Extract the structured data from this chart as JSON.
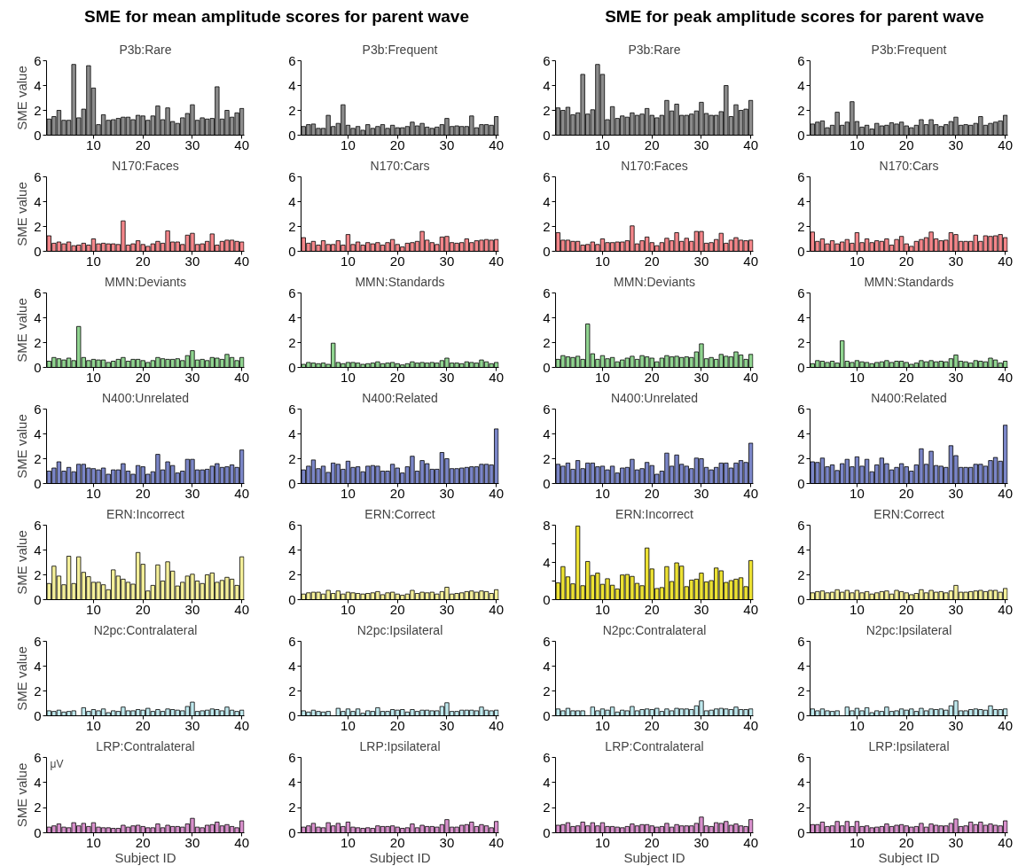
{
  "chart_data": [
    {
      "type": "bar",
      "title": "P3b:Rare",
      "ylabel": "SME value",
      "annotations": [
        "SME for mean amplitude scores for parent wave"
      ],
      "color": "#8c8c8c",
      "xlim": [
        0.5,
        40.5
      ],
      "xticks": [
        10,
        20,
        30,
        40
      ],
      "ylim": [
        0,
        6
      ],
      "yticks": [
        0,
        2,
        4,
        6
      ],
      "x": [
        1,
        2,
        3,
        4,
        5,
        6,
        7,
        8,
        9,
        10,
        11,
        12,
        13,
        14,
        15,
        16,
        17,
        18,
        19,
        20,
        21,
        22,
        23,
        24,
        25,
        26,
        27,
        28,
        29,
        30,
        31,
        32,
        33,
        34,
        35,
        36,
        37,
        38,
        39,
        40
      ],
      "values": [
        1.3,
        1.5,
        2.0,
        1.2,
        1.2,
        5.7,
        1.4,
        2.1,
        5.6,
        3.8,
        0.85,
        1.65,
        1.2,
        1.25,
        1.35,
        1.45,
        1.45,
        1.25,
        1.6,
        1.55,
        1.2,
        1.55,
        2.35,
        1.25,
        2.2,
        1.1,
        0.95,
        1.4,
        1.75,
        2.45,
        1.2,
        1.4,
        1.3,
        1.35,
        3.9,
        1.3,
        2.0,
        1.45,
        1.8,
        2.15
      ]
    },
    {
      "type": "bar",
      "title": "P3b:Frequent",
      "color": "#8c8c8c",
      "xlim": [
        0.5,
        40.5
      ],
      "xticks": [
        10,
        20,
        30,
        40
      ],
      "ylim": [
        0,
        6
      ],
      "yticks": [
        0,
        2,
        4,
        6
      ],
      "x": [
        1,
        2,
        3,
        4,
        5,
        6,
        7,
        8,
        9,
        10,
        11,
        12,
        13,
        14,
        15,
        16,
        17,
        18,
        19,
        20,
        21,
        22,
        23,
        24,
        25,
        26,
        27,
        28,
        29,
        30,
        31,
        32,
        33,
        34,
        35,
        36,
        37,
        38,
        39,
        40
      ],
      "values": [
        0.7,
        0.85,
        0.9,
        0.55,
        0.55,
        1.6,
        0.7,
        0.95,
        2.45,
        0.8,
        0.55,
        0.7,
        0.4,
        0.85,
        0.55,
        0.7,
        0.85,
        0.55,
        0.8,
        0.6,
        0.6,
        0.7,
        1.05,
        0.75,
        0.95,
        0.65,
        0.55,
        0.65,
        0.85,
        1.35,
        0.7,
        0.75,
        0.7,
        0.7,
        1.55,
        0.6,
        0.85,
        0.85,
        0.8,
        1.5
      ]
    },
    {
      "type": "bar",
      "title": "P3b:Rare",
      "annotations": [
        "SME for peak amplitude scores for parent wave"
      ],
      "color": "#8c8c8c",
      "xlim": [
        0.5,
        40.5
      ],
      "xticks": [
        10,
        20,
        30,
        40
      ],
      "ylim": [
        0,
        6
      ],
      "yticks": [
        0,
        2,
        4,
        6
      ],
      "x": [
        1,
        2,
        3,
        4,
        5,
        6,
        7,
        8,
        9,
        10,
        11,
        12,
        13,
        14,
        15,
        16,
        17,
        18,
        19,
        20,
        21,
        22,
        23,
        24,
        25,
        26,
        27,
        28,
        29,
        30,
        31,
        32,
        33,
        34,
        35,
        36,
        37,
        38,
        39,
        40
      ],
      "values": [
        2.2,
        2.0,
        2.25,
        1.65,
        1.8,
        4.9,
        1.7,
        2.05,
        5.7,
        4.9,
        1.25,
        2.3,
        1.35,
        1.55,
        1.45,
        1.8,
        1.6,
        1.7,
        2.15,
        1.6,
        1.4,
        1.6,
        2.8,
        1.95,
        2.5,
        1.6,
        1.6,
        1.7,
        1.95,
        2.65,
        1.75,
        1.6,
        1.6,
        1.9,
        4.0,
        1.5,
        2.45,
        2.0,
        2.1,
        2.8
      ]
    },
    {
      "type": "bar",
      "title": "P3b:Frequent",
      "color": "#8c8c8c",
      "xlim": [
        0.5,
        40.5
      ],
      "xticks": [
        10,
        20,
        30,
        40
      ],
      "ylim": [
        0,
        6
      ],
      "yticks": [
        0,
        2,
        4,
        6
      ],
      "x": [
        1,
        2,
        3,
        4,
        5,
        6,
        7,
        8,
        9,
        10,
        11,
        12,
        13,
        14,
        15,
        16,
        17,
        18,
        19,
        20,
        21,
        22,
        23,
        24,
        25,
        26,
        27,
        28,
        29,
        30,
        31,
        32,
        33,
        34,
        35,
        36,
        37,
        38,
        39,
        40
      ],
      "values": [
        0.9,
        1.05,
        1.15,
        0.6,
        0.8,
        1.85,
        0.8,
        1.05,
        2.7,
        1.1,
        0.65,
        0.8,
        0.5,
        0.95,
        0.75,
        0.8,
        1.0,
        0.9,
        1.05,
        0.75,
        0.6,
        0.8,
        1.25,
        0.85,
        1.25,
        0.85,
        0.7,
        0.85,
        1.1,
        1.45,
        0.8,
        0.85,
        0.8,
        0.95,
        1.5,
        0.8,
        0.95,
        1.05,
        1.15,
        1.6
      ]
    },
    {
      "type": "bar",
      "title": "N170:Faces",
      "ylabel": "SME value",
      "color": "#f4868a",
      "xlim": [
        0.5,
        40.5
      ],
      "xticks": [
        10,
        20,
        30,
        40
      ],
      "ylim": [
        0,
        6
      ],
      "yticks": [
        0,
        2,
        4,
        6
      ],
      "x": [
        1,
        2,
        3,
        4,
        5,
        6,
        7,
        8,
        9,
        10,
        11,
        12,
        13,
        14,
        15,
        16,
        17,
        18,
        19,
        20,
        21,
        22,
        23,
        24,
        25,
        26,
        27,
        28,
        29,
        30,
        31,
        32,
        33,
        34,
        35,
        36,
        37,
        38,
        39,
        40
      ],
      "values": [
        1.25,
        0.65,
        0.75,
        0.6,
        0.75,
        0.45,
        0.5,
        0.65,
        0.5,
        1.0,
        0.6,
        0.65,
        0.6,
        0.6,
        0.55,
        2.45,
        0.5,
        0.6,
        0.85,
        0.55,
        0.4,
        0.6,
        0.8,
        0.65,
        1.65,
        0.75,
        0.75,
        0.55,
        1.3,
        1.45,
        0.55,
        0.6,
        0.8,
        1.4,
        0.5,
        0.8,
        0.9,
        0.9,
        0.8,
        0.75
      ]
    },
    {
      "type": "bar",
      "title": "N170:Cars",
      "color": "#f4868a",
      "xlim": [
        0.5,
        40.5
      ],
      "xticks": [
        10,
        20,
        30,
        40
      ],
      "ylim": [
        0,
        6
      ],
      "yticks": [
        0,
        2,
        4,
        6
      ],
      "x": [
        1,
        2,
        3,
        4,
        5,
        6,
        7,
        8,
        9,
        10,
        11,
        12,
        13,
        14,
        15,
        16,
        17,
        18,
        19,
        20,
        21,
        22,
        23,
        24,
        25,
        26,
        27,
        28,
        29,
        30,
        31,
        32,
        33,
        34,
        35,
        36,
        37,
        38,
        39,
        40
      ],
      "values": [
        1.1,
        0.65,
        0.8,
        0.5,
        0.85,
        0.55,
        0.55,
        0.85,
        0.5,
        1.35,
        0.55,
        0.75,
        0.5,
        0.7,
        0.6,
        0.7,
        0.5,
        0.7,
        0.95,
        0.55,
        0.35,
        0.65,
        0.7,
        0.8,
        1.6,
        0.9,
        0.7,
        0.55,
        1.15,
        1.2,
        0.7,
        0.65,
        0.7,
        1.0,
        0.7,
        0.85,
        0.9,
        0.95,
        0.9,
        0.95
      ]
    },
    {
      "type": "bar",
      "title": "N170:Faces",
      "color": "#f4868a",
      "xlim": [
        0.5,
        40.5
      ],
      "xticks": [
        10,
        20,
        30,
        40
      ],
      "ylim": [
        0,
        6
      ],
      "yticks": [
        0,
        2,
        4,
        6
      ],
      "x": [
        1,
        2,
        3,
        4,
        5,
        6,
        7,
        8,
        9,
        10,
        11,
        12,
        13,
        14,
        15,
        16,
        17,
        18,
        19,
        20,
        21,
        22,
        23,
        24,
        25,
        26,
        27,
        28,
        29,
        30,
        31,
        32,
        33,
        34,
        35,
        36,
        37,
        38,
        39,
        40
      ],
      "values": [
        1.5,
        0.9,
        0.9,
        0.8,
        0.8,
        0.5,
        0.55,
        0.75,
        0.55,
        1.0,
        0.7,
        0.7,
        0.75,
        0.75,
        0.85,
        2.05,
        0.6,
        0.85,
        1.15,
        0.7,
        0.45,
        0.7,
        1.05,
        0.85,
        1.5,
        0.8,
        1.05,
        0.8,
        1.6,
        1.6,
        0.65,
        0.7,
        0.95,
        1.45,
        0.65,
        0.9,
        1.1,
        0.9,
        0.85,
        0.9
      ]
    },
    {
      "type": "bar",
      "title": "N170:Cars",
      "color": "#f4868a",
      "xlim": [
        0.5,
        40.5
      ],
      "xticks": [
        10,
        20,
        30,
        40
      ],
      "ylim": [
        0,
        6
      ],
      "yticks": [
        0,
        2,
        4,
        6
      ],
      "x": [
        1,
        2,
        3,
        4,
        5,
        6,
        7,
        8,
        9,
        10,
        11,
        12,
        13,
        14,
        15,
        16,
        17,
        18,
        19,
        20,
        21,
        22,
        23,
        24,
        25,
        26,
        27,
        28,
        29,
        30,
        31,
        32,
        33,
        34,
        35,
        36,
        37,
        38,
        39,
        40
      ],
      "values": [
        1.55,
        0.8,
        1.0,
        0.6,
        0.85,
        0.6,
        0.75,
        0.95,
        0.65,
        1.5,
        0.7,
        1.0,
        0.7,
        0.85,
        0.8,
        1.0,
        0.5,
        0.95,
        1.2,
        0.6,
        0.4,
        0.8,
        0.95,
        1.1,
        1.55,
        1.0,
        0.85,
        0.9,
        1.5,
        1.35,
        0.8,
        0.8,
        0.8,
        1.3,
        0.8,
        1.25,
        1.2,
        1.25,
        1.35,
        1.1
      ]
    },
    {
      "type": "bar",
      "title": "MMN:Deviants",
      "ylabel": "SME value",
      "color": "#90d490",
      "xlim": [
        0.5,
        40.5
      ],
      "xticks": [
        10,
        20,
        30,
        40
      ],
      "ylim": [
        0,
        6
      ],
      "yticks": [
        0,
        2,
        4,
        6
      ],
      "x": [
        1,
        2,
        3,
        4,
        5,
        6,
        7,
        8,
        9,
        10,
        11,
        12,
        13,
        14,
        15,
        16,
        17,
        18,
        19,
        20,
        21,
        22,
        23,
        24,
        25,
        26,
        27,
        28,
        29,
        30,
        31,
        32,
        33,
        34,
        35,
        36,
        37,
        38,
        39,
        40
      ],
      "values": [
        0.5,
        0.8,
        0.7,
        0.6,
        0.75,
        0.55,
        3.3,
        0.8,
        0.55,
        0.65,
        0.6,
        0.6,
        0.4,
        0.5,
        0.65,
        0.8,
        0.5,
        0.65,
        0.65,
        0.55,
        0.4,
        0.55,
        0.8,
        0.7,
        0.65,
        0.65,
        0.7,
        0.55,
        0.95,
        1.35,
        0.6,
        0.65,
        0.55,
        0.8,
        0.75,
        0.65,
        1.05,
        0.8,
        0.55,
        0.8
      ]
    },
    {
      "type": "bar",
      "title": "MMN:Standards",
      "color": "#90d490",
      "xlim": [
        0.5,
        40.5
      ],
      "xticks": [
        10,
        20,
        30,
        40
      ],
      "ylim": [
        0,
        6
      ],
      "yticks": [
        0,
        2,
        4,
        6
      ],
      "x": [
        1,
        2,
        3,
        4,
        5,
        6,
        7,
        8,
        9,
        10,
        11,
        12,
        13,
        14,
        15,
        16,
        17,
        18,
        19,
        20,
        21,
        22,
        23,
        24,
        25,
        26,
        27,
        28,
        29,
        30,
        31,
        32,
        33,
        34,
        35,
        36,
        37,
        38,
        39,
        40
      ],
      "values": [
        0.25,
        0.4,
        0.35,
        0.3,
        0.35,
        0.25,
        1.95,
        0.4,
        0.3,
        0.4,
        0.4,
        0.35,
        0.25,
        0.3,
        0.35,
        0.45,
        0.3,
        0.35,
        0.4,
        0.3,
        0.2,
        0.3,
        0.45,
        0.35,
        0.4,
        0.35,
        0.4,
        0.35,
        0.55,
        0.75,
        0.35,
        0.35,
        0.3,
        0.45,
        0.4,
        0.35,
        0.6,
        0.45,
        0.3,
        0.4
      ]
    },
    {
      "type": "bar",
      "title": "MMN:Deviants",
      "color": "#90d490",
      "xlim": [
        0.5,
        40.5
      ],
      "xticks": [
        10,
        20,
        30,
        40
      ],
      "ylim": [
        0,
        6
      ],
      "yticks": [
        0,
        2,
        4,
        6
      ],
      "x": [
        1,
        2,
        3,
        4,
        5,
        6,
        7,
        8,
        9,
        10,
        11,
        12,
        13,
        14,
        15,
        16,
        17,
        18,
        19,
        20,
        21,
        22,
        23,
        24,
        25,
        26,
        27,
        28,
        29,
        30,
        31,
        32,
        33,
        34,
        35,
        36,
        37,
        38,
        39,
        40
      ],
      "values": [
        0.65,
        0.95,
        0.85,
        0.8,
        0.9,
        0.65,
        3.5,
        1.1,
        0.65,
        0.95,
        0.7,
        0.8,
        0.45,
        0.6,
        0.75,
        0.9,
        0.65,
        0.95,
        0.85,
        0.75,
        0.45,
        0.75,
        0.95,
        0.85,
        0.9,
        0.8,
        0.85,
        0.8,
        1.25,
        1.9,
        0.7,
        0.8,
        0.65,
        1.05,
        0.9,
        0.85,
        1.25,
        1.0,
        0.65,
        1.05
      ]
    },
    {
      "type": "bar",
      "title": "MMN:Standards",
      "color": "#90d490",
      "xlim": [
        0.5,
        40.5
      ],
      "xticks": [
        10,
        20,
        30,
        40
      ],
      "ylim": [
        0,
        6
      ],
      "yticks": [
        0,
        2,
        4,
        6
      ],
      "x": [
        1,
        2,
        3,
        4,
        5,
        6,
        7,
        8,
        9,
        10,
        11,
        12,
        13,
        14,
        15,
        16,
        17,
        18,
        19,
        20,
        21,
        22,
        23,
        24,
        25,
        26,
        27,
        28,
        29,
        30,
        31,
        32,
        33,
        34,
        35,
        36,
        37,
        38,
        39,
        40
      ],
      "values": [
        0.3,
        0.55,
        0.5,
        0.4,
        0.5,
        0.35,
        2.15,
        0.5,
        0.4,
        0.55,
        0.45,
        0.4,
        0.3,
        0.4,
        0.45,
        0.55,
        0.4,
        0.5,
        0.5,
        0.4,
        0.25,
        0.35,
        0.55,
        0.45,
        0.55,
        0.45,
        0.5,
        0.45,
        0.7,
        1.0,
        0.5,
        0.45,
        0.35,
        0.55,
        0.5,
        0.45,
        0.75,
        0.6,
        0.35,
        0.5
      ]
    },
    {
      "type": "bar",
      "title": "N400:Unrelated",
      "ylabel": "SME value",
      "color": "#7b86c8",
      "xlim": [
        0.5,
        40.5
      ],
      "xticks": [
        10,
        20,
        30,
        40
      ],
      "ylim": [
        0,
        6
      ],
      "yticks": [
        0,
        2,
        4,
        6
      ],
      "x": [
        1,
        2,
        3,
        4,
        5,
        6,
        7,
        8,
        9,
        10,
        11,
        12,
        13,
        14,
        15,
        16,
        17,
        18,
        19,
        20,
        21,
        22,
        23,
        24,
        25,
        26,
        27,
        28,
        29,
        30,
        31,
        32,
        33,
        34,
        35,
        36,
        37,
        38,
        39,
        40
      ],
      "values": [
        1.0,
        1.25,
        1.75,
        1.0,
        1.3,
        0.95,
        1.55,
        1.55,
        1.25,
        1.2,
        1.1,
        1.25,
        0.75,
        1.1,
        1.1,
        1.6,
        1.0,
        0.75,
        1.45,
        1.35,
        0.75,
        0.95,
        2.35,
        1.1,
        1.75,
        1.45,
        0.85,
        1.0,
        1.95,
        1.95,
        1.1,
        1.1,
        1.15,
        1.4,
        1.6,
        1.3,
        1.35,
        1.5,
        1.3,
        2.7
      ]
    },
    {
      "type": "bar",
      "title": "N400:Related",
      "color": "#7b86c8",
      "xlim": [
        0.5,
        40.5
      ],
      "xticks": [
        10,
        20,
        30,
        40
      ],
      "ylim": [
        0,
        6
      ],
      "yticks": [
        0,
        2,
        4,
        6
      ],
      "x": [
        1,
        2,
        3,
        4,
        5,
        6,
        7,
        8,
        9,
        10,
        11,
        12,
        13,
        14,
        15,
        16,
        17,
        18,
        19,
        20,
        21,
        22,
        23,
        24,
        25,
        26,
        27,
        28,
        29,
        30,
        31,
        32,
        33,
        34,
        35,
        36,
        37,
        38,
        39,
        40
      ],
      "values": [
        1.1,
        1.4,
        1.9,
        1.2,
        1.4,
        0.9,
        1.65,
        1.55,
        1.15,
        1.8,
        1.3,
        1.35,
        0.95,
        1.4,
        1.45,
        1.4,
        1.0,
        1.0,
        1.55,
        1.25,
        0.85,
        1.35,
        2.2,
        1.0,
        1.85,
        1.6,
        1.15,
        1.15,
        2.5,
        2.0,
        1.2,
        1.2,
        1.25,
        1.3,
        1.35,
        1.35,
        1.55,
        1.55,
        1.5,
        4.4
      ]
    },
    {
      "type": "bar",
      "title": "N400:Unrelated",
      "color": "#7b86c8",
      "xlim": [
        0.5,
        40.5
      ],
      "xticks": [
        10,
        20,
        30,
        40
      ],
      "ylim": [
        0,
        6
      ],
      "yticks": [
        0,
        2,
        4,
        6
      ],
      "x": [
        1,
        2,
        3,
        4,
        5,
        6,
        7,
        8,
        9,
        10,
        11,
        12,
        13,
        14,
        15,
        16,
        17,
        18,
        19,
        20,
        21,
        22,
        23,
        24,
        25,
        26,
        27,
        28,
        29,
        30,
        31,
        32,
        33,
        34,
        35,
        36,
        37,
        38,
        39,
        40
      ],
      "values": [
        1.55,
        1.4,
        1.65,
        1.15,
        1.85,
        1.2,
        1.65,
        1.65,
        1.35,
        1.4,
        1.1,
        1.4,
        0.85,
        1.25,
        1.3,
        1.95,
        1.1,
        1.2,
        1.7,
        1.45,
        0.75,
        1.0,
        2.45,
        1.4,
        2.3,
        1.55,
        1.4,
        1.2,
        2.05,
        2.0,
        1.3,
        1.1,
        1.3,
        1.65,
        1.65,
        1.25,
        1.65,
        1.85,
        1.7,
        3.25
      ]
    },
    {
      "type": "bar",
      "title": "N400:Related",
      "color": "#7b86c8",
      "xlim": [
        0.5,
        40.5
      ],
      "xticks": [
        10,
        20,
        30,
        40
      ],
      "ylim": [
        0,
        6
      ],
      "yticks": [
        0,
        2,
        4,
        6
      ],
      "x": [
        1,
        2,
        3,
        4,
        5,
        6,
        7,
        8,
        9,
        10,
        11,
        12,
        13,
        14,
        15,
        16,
        17,
        18,
        19,
        20,
        21,
        22,
        23,
        24,
        25,
        26,
        27,
        28,
        29,
        30,
        31,
        32,
        33,
        34,
        35,
        36,
        37,
        38,
        39,
        40
      ],
      "values": [
        1.75,
        1.7,
        2.05,
        1.35,
        1.5,
        1.05,
        1.6,
        1.95,
        1.35,
        2.15,
        1.4,
        1.95,
        0.95,
        1.5,
        2.05,
        1.6,
        1.1,
        1.3,
        1.6,
        1.35,
        1.0,
        1.5,
        2.8,
        1.55,
        2.6,
        1.45,
        1.4,
        1.3,
        3.05,
        2.25,
        1.3,
        1.3,
        1.3,
        1.55,
        1.55,
        1.4,
        1.85,
        2.1,
        1.8,
        4.7
      ]
    },
    {
      "type": "bar",
      "title": "ERN:Incorrect",
      "ylabel": "SME value",
      "color": "#f5f09a",
      "xlim": [
        0.5,
        40.5
      ],
      "xticks": [
        10,
        20,
        30,
        40
      ],
      "ylim": [
        0,
        6
      ],
      "yticks": [
        0,
        2,
        4,
        6
      ],
      "x": [
        1,
        2,
        3,
        4,
        5,
        6,
        7,
        8,
        9,
        10,
        11,
        12,
        13,
        14,
        15,
        16,
        17,
        18,
        19,
        20,
        21,
        22,
        23,
        24,
        25,
        26,
        27,
        28,
        29,
        30,
        31,
        32,
        33,
        34,
        35,
        36,
        37,
        38,
        39,
        40
      ],
      "values": [
        1.3,
        2.7,
        1.9,
        1.2,
        3.5,
        1.3,
        3.45,
        2.2,
        1.85,
        1.4,
        1.4,
        1.2,
        0.8,
        2.4,
        1.9,
        1.65,
        1.4,
        1.25,
        3.8,
        2.85,
        0.7,
        1.15,
        2.8,
        1.5,
        3.05,
        2.3,
        1.1,
        1.4,
        1.9,
        2.05,
        1.5,
        1.3,
        2.0,
        2.15,
        1.4,
        1.55,
        1.8,
        1.65,
        1.15,
        3.45
      ]
    },
    {
      "type": "bar",
      "title": "ERN:Correct",
      "color": "#f5f09a",
      "xlim": [
        0.5,
        40.5
      ],
      "xticks": [
        10,
        20,
        30,
        40
      ],
      "ylim": [
        0,
        6
      ],
      "yticks": [
        0,
        2,
        4,
        6
      ],
      "x": [
        1,
        2,
        3,
        4,
        5,
        6,
        7,
        8,
        9,
        10,
        11,
        12,
        13,
        14,
        15,
        16,
        17,
        18,
        19,
        20,
        21,
        22,
        23,
        24,
        25,
        26,
        27,
        28,
        29,
        30,
        31,
        32,
        33,
        34,
        35,
        36,
        37,
        38,
        39,
        40
      ],
      "values": [
        0.45,
        0.55,
        0.6,
        0.6,
        0.45,
        0.75,
        0.5,
        0.7,
        0.45,
        0.6,
        0.55,
        0.5,
        0.45,
        0.5,
        0.55,
        0.65,
        0.4,
        0.55,
        0.6,
        0.45,
        0.35,
        0.45,
        0.75,
        0.5,
        0.6,
        0.55,
        0.6,
        0.45,
        0.65,
        1.0,
        0.45,
        0.5,
        0.55,
        0.65,
        0.7,
        0.6,
        0.7,
        0.65,
        0.5,
        0.8
      ]
    },
    {
      "type": "bar",
      "title": "ERN:Incorrect",
      "color": "#ede233",
      "xlim": [
        0.5,
        40.5
      ],
      "xticks": [
        10,
        20,
        30,
        40
      ],
      "ylim": [
        0,
        8
      ],
      "yticks": [
        0,
        {
          "value": 2,
          "label": null
        },
        4,
        {
          "value": 6,
          "label": null
        },
        8
      ],
      "x": [
        1,
        2,
        3,
        4,
        5,
        6,
        7,
        8,
        9,
        10,
        11,
        12,
        13,
        14,
        15,
        16,
        17,
        18,
        19,
        20,
        21,
        22,
        23,
        24,
        25,
        26,
        27,
        28,
        29,
        30,
        31,
        32,
        33,
        34,
        35,
        36,
        37,
        38,
        39,
        40
      ],
      "values": [
        1.8,
        3.55,
        2.45,
        1.7,
        7.9,
        1.5,
        4.1,
        2.6,
        2.85,
        1.65,
        2.25,
        1.55,
        1.15,
        2.65,
        2.7,
        2.5,
        1.75,
        1.5,
        5.55,
        3.3,
        1.2,
        1.3,
        3.55,
        1.95,
        3.95,
        3.6,
        1.4,
        2.1,
        2.2,
        2.85,
        1.9,
        2.05,
        3.4,
        3.1,
        1.85,
        2.05,
        2.2,
        2.35,
        1.4,
        4.2
      ]
    },
    {
      "type": "bar",
      "title": "ERN:Correct",
      "color": "#f5f09a",
      "xlim": [
        0.5,
        40.5
      ],
      "xticks": [
        10,
        20,
        30,
        40
      ],
      "ylim": [
        0,
        6
      ],
      "yticks": [
        0,
        2,
        4,
        6
      ],
      "x": [
        1,
        2,
        3,
        4,
        5,
        6,
        7,
        8,
        9,
        10,
        11,
        12,
        13,
        14,
        15,
        16,
        17,
        18,
        19,
        20,
        21,
        22,
        23,
        24,
        25,
        26,
        27,
        28,
        29,
        30,
        31,
        32,
        33,
        34,
        35,
        36,
        37,
        38,
        39,
        40
      ],
      "values": [
        0.55,
        0.65,
        0.7,
        0.55,
        0.6,
        0.8,
        0.6,
        0.75,
        0.55,
        0.75,
        0.55,
        0.65,
        0.45,
        0.55,
        0.65,
        0.7,
        0.45,
        0.75,
        0.65,
        0.55,
        0.4,
        0.5,
        0.8,
        0.55,
        0.75,
        0.6,
        0.65,
        0.55,
        0.7,
        1.15,
        0.6,
        0.6,
        0.65,
        0.7,
        0.75,
        0.65,
        0.75,
        0.75,
        0.6,
        0.9
      ]
    },
    {
      "type": "bar",
      "title": "N2pc:Contralateral",
      "ylabel": "SME value",
      "color": "#bfe9ee",
      "xlim": [
        0.5,
        40.5
      ],
      "xticks": [
        10,
        20,
        30,
        40
      ],
      "ylim": [
        0,
        6
      ],
      "yticks": [
        0,
        2,
        4,
        6
      ],
      "x": [
        1,
        2,
        3,
        4,
        5,
        6,
        7,
        8,
        9,
        10,
        11,
        12,
        13,
        14,
        15,
        16,
        17,
        18,
        19,
        20,
        21,
        22,
        23,
        24,
        25,
        26,
        27,
        28,
        29,
        30,
        31,
        32,
        33,
        34,
        35,
        36,
        37,
        38,
        39,
        40
      ],
      "values": [
        0.4,
        0.35,
        0.45,
        0.3,
        0.35,
        0.4,
        null,
        0.65,
        0.35,
        0.5,
        0.4,
        0.55,
        0.25,
        0.4,
        0.35,
        0.7,
        0.4,
        0.4,
        0.5,
        0.45,
        0.6,
        0.35,
        0.5,
        0.35,
        0.55,
        0.5,
        0.45,
        0.4,
        0.75,
        1.1,
        0.35,
        0.4,
        0.45,
        0.55,
        0.5,
        0.4,
        0.7,
        0.45,
        0.35,
        0.45
      ]
    },
    {
      "type": "bar",
      "title": "N2pc:Ipsilateral",
      "color": "#bfe9ee",
      "xlim": [
        0.5,
        40.5
      ],
      "xticks": [
        10,
        20,
        30,
        40
      ],
      "ylim": [
        0,
        6
      ],
      "yticks": [
        0,
        2,
        4,
        6
      ],
      "x": [
        1,
        2,
        3,
        4,
        5,
        6,
        7,
        8,
        9,
        10,
        11,
        12,
        13,
        14,
        15,
        16,
        17,
        18,
        19,
        20,
        21,
        22,
        23,
        24,
        25,
        26,
        27,
        28,
        29,
        30,
        31,
        32,
        33,
        34,
        35,
        36,
        37,
        38,
        39,
        40
      ],
      "values": [
        0.4,
        0.3,
        0.45,
        0.35,
        0.3,
        0.35,
        null,
        0.6,
        0.35,
        0.55,
        0.35,
        0.55,
        0.2,
        0.4,
        0.35,
        0.65,
        0.35,
        0.35,
        0.5,
        0.45,
        0.5,
        0.3,
        0.5,
        0.35,
        0.45,
        0.45,
        0.4,
        0.4,
        0.75,
        1.05,
        0.35,
        0.35,
        0.45,
        0.45,
        0.45,
        0.4,
        0.7,
        0.45,
        0.4,
        0.45
      ]
    },
    {
      "type": "bar",
      "title": "N2pc:Contralateral",
      "color": "#bfe9ee",
      "xlim": [
        0.5,
        40.5
      ],
      "xticks": [
        10,
        20,
        30,
        40
      ],
      "ylim": [
        0,
        6
      ],
      "yticks": [
        0,
        2,
        4,
        6
      ],
      "x": [
        1,
        2,
        3,
        4,
        5,
        6,
        7,
        8,
        9,
        10,
        11,
        12,
        13,
        14,
        15,
        16,
        17,
        18,
        19,
        20,
        21,
        22,
        23,
        24,
        25,
        26,
        27,
        28,
        29,
        30,
        31,
        32,
        33,
        34,
        35,
        36,
        37,
        38,
        39,
        40
      ],
      "values": [
        0.55,
        0.4,
        0.6,
        0.4,
        0.4,
        0.4,
        null,
        0.7,
        0.4,
        0.55,
        0.45,
        0.7,
        0.3,
        0.45,
        0.4,
        0.75,
        0.4,
        0.5,
        0.55,
        0.5,
        0.6,
        0.35,
        0.55,
        0.4,
        0.6,
        0.55,
        0.55,
        0.5,
        0.8,
        1.2,
        0.4,
        0.45,
        0.55,
        0.6,
        0.55,
        0.5,
        0.7,
        0.5,
        0.5,
        0.55
      ]
    },
    {
      "type": "bar",
      "title": "N2pc:Ipsilateral",
      "color": "#bfe9ee",
      "xlim": [
        0.5,
        40.5
      ],
      "xticks": [
        10,
        20,
        30,
        40
      ],
      "ylim": [
        0,
        6
      ],
      "yticks": [
        0,
        2,
        4,
        6
      ],
      "x": [
        1,
        2,
        3,
        4,
        5,
        6,
        7,
        8,
        9,
        10,
        11,
        12,
        13,
        14,
        15,
        16,
        17,
        18,
        19,
        20,
        21,
        22,
        23,
        24,
        25,
        26,
        27,
        28,
        29,
        30,
        31,
        32,
        33,
        34,
        35,
        36,
        37,
        38,
        39,
        40
      ],
      "values": [
        0.55,
        0.4,
        0.55,
        0.4,
        0.35,
        0.4,
        null,
        0.7,
        0.4,
        0.6,
        0.4,
        0.65,
        0.25,
        0.4,
        0.35,
        0.7,
        0.35,
        0.4,
        0.55,
        0.45,
        0.55,
        0.35,
        0.6,
        0.4,
        0.55,
        0.5,
        0.55,
        0.45,
        0.8,
        1.2,
        0.4,
        0.4,
        0.5,
        0.55,
        0.5,
        0.45,
        0.8,
        0.5,
        0.5,
        0.55
      ]
    },
    {
      "type": "bar",
      "title": "LRP:Contralateral",
      "ylabel": "SME value",
      "xlabel": "Subject ID",
      "annotations": [
        "μV"
      ],
      "color": "#d890cc",
      "xlim": [
        0.5,
        40.5
      ],
      "xticks": [
        10,
        20,
        30,
        40
      ],
      "ylim": [
        0,
        6
      ],
      "yticks": [
        0,
        2,
        4,
        6
      ],
      "x": [
        1,
        2,
        3,
        4,
        5,
        6,
        7,
        8,
        9,
        10,
        11,
        12,
        13,
        14,
        15,
        16,
        17,
        18,
        19,
        20,
        21,
        22,
        23,
        24,
        25,
        26,
        27,
        28,
        29,
        30,
        31,
        32,
        33,
        34,
        35,
        36,
        37,
        38,
        39,
        40
      ],
      "values": [
        0.45,
        0.55,
        0.7,
        0.45,
        0.4,
        0.8,
        0.55,
        0.75,
        0.5,
        0.8,
        0.45,
        0.4,
        0.4,
        0.35,
        0.35,
        0.6,
        0.45,
        0.55,
        0.6,
        0.5,
        0.4,
        0.4,
        0.7,
        0.4,
        0.6,
        0.5,
        0.5,
        0.45,
        0.7,
        1.15,
        0.45,
        0.4,
        0.6,
        0.65,
        0.85,
        0.55,
        0.65,
        0.5,
        0.4,
        0.95
      ]
    },
    {
      "type": "bar",
      "title": "LRP:Ipsilateral",
      "xlabel": "Subject ID",
      "color": "#d890cc",
      "xlim": [
        0.5,
        40.5
      ],
      "xticks": [
        10,
        20,
        30,
        40
      ],
      "ylim": [
        0,
        6
      ],
      "yticks": [
        0,
        2,
        4,
        6
      ],
      "x": [
        1,
        2,
        3,
        4,
        5,
        6,
        7,
        8,
        9,
        10,
        11,
        12,
        13,
        14,
        15,
        16,
        17,
        18,
        19,
        20,
        21,
        22,
        23,
        24,
        25,
        26,
        27,
        28,
        29,
        30,
        31,
        32,
        33,
        34,
        35,
        36,
        37,
        38,
        39,
        40
      ],
      "values": [
        0.45,
        0.55,
        0.75,
        0.45,
        0.4,
        0.8,
        0.55,
        0.75,
        0.5,
        0.85,
        0.45,
        0.4,
        0.35,
        0.4,
        0.35,
        0.55,
        0.5,
        0.5,
        0.55,
        0.45,
        0.35,
        0.4,
        0.7,
        0.4,
        0.6,
        0.5,
        0.5,
        0.45,
        0.65,
        1.05,
        0.45,
        0.45,
        0.6,
        0.65,
        0.85,
        0.5,
        0.65,
        0.55,
        0.4,
        0.9
      ]
    },
    {
      "type": "bar",
      "title": "LRP:Contralateral",
      "xlabel": "Subject ID",
      "color": "#d890cc",
      "xlim": [
        0.5,
        40.5
      ],
      "xticks": [
        10,
        20,
        30,
        40
      ],
      "ylim": [
        0,
        6
      ],
      "yticks": [
        0,
        2,
        4,
        6
      ],
      "x": [
        1,
        2,
        3,
        4,
        5,
        6,
        7,
        8,
        9,
        10,
        11,
        12,
        13,
        14,
        15,
        16,
        17,
        18,
        19,
        20,
        21,
        22,
        23,
        24,
        25,
        26,
        27,
        28,
        29,
        30,
        31,
        32,
        33,
        34,
        35,
        36,
        37,
        38,
        39,
        40
      ],
      "values": [
        0.6,
        0.65,
        0.8,
        0.5,
        0.55,
        0.85,
        0.55,
        0.8,
        0.55,
        0.8,
        0.5,
        0.5,
        0.45,
        0.4,
        0.5,
        0.7,
        0.55,
        0.65,
        0.65,
        0.55,
        0.45,
        0.5,
        0.75,
        0.45,
        0.65,
        0.55,
        0.55,
        0.55,
        0.75,
        1.25,
        0.55,
        0.5,
        0.8,
        0.75,
        0.9,
        0.6,
        0.7,
        0.55,
        0.5,
        1.05
      ]
    },
    {
      "type": "bar",
      "title": "LRP:Ipsilateral",
      "xlabel": "Subject ID",
      "color": "#d890cc",
      "xlim": [
        0.5,
        40.5
      ],
      "xticks": [
        10,
        20,
        30,
        40
      ],
      "ylim": [
        0,
        6
      ],
      "yticks": [
        0,
        2,
        4,
        6
      ],
      "x": [
        1,
        2,
        3,
        4,
        5,
        6,
        7,
        8,
        9,
        10,
        11,
        12,
        13,
        14,
        15,
        16,
        17,
        18,
        19,
        20,
        21,
        22,
        23,
        24,
        25,
        26,
        27,
        28,
        29,
        30,
        31,
        32,
        33,
        34,
        35,
        36,
        37,
        38,
        39,
        40
      ],
      "values": [
        0.65,
        0.65,
        0.85,
        0.5,
        0.55,
        0.9,
        0.55,
        0.9,
        0.5,
        0.9,
        0.5,
        0.55,
        0.4,
        0.45,
        0.5,
        0.7,
        0.5,
        0.6,
        0.65,
        0.55,
        0.45,
        0.5,
        0.75,
        0.45,
        0.7,
        0.6,
        0.55,
        0.55,
        0.75,
        1.1,
        0.5,
        0.55,
        0.85,
        0.65,
        0.85,
        0.6,
        0.7,
        0.6,
        0.55,
        0.95
      ]
    }
  ]
}
